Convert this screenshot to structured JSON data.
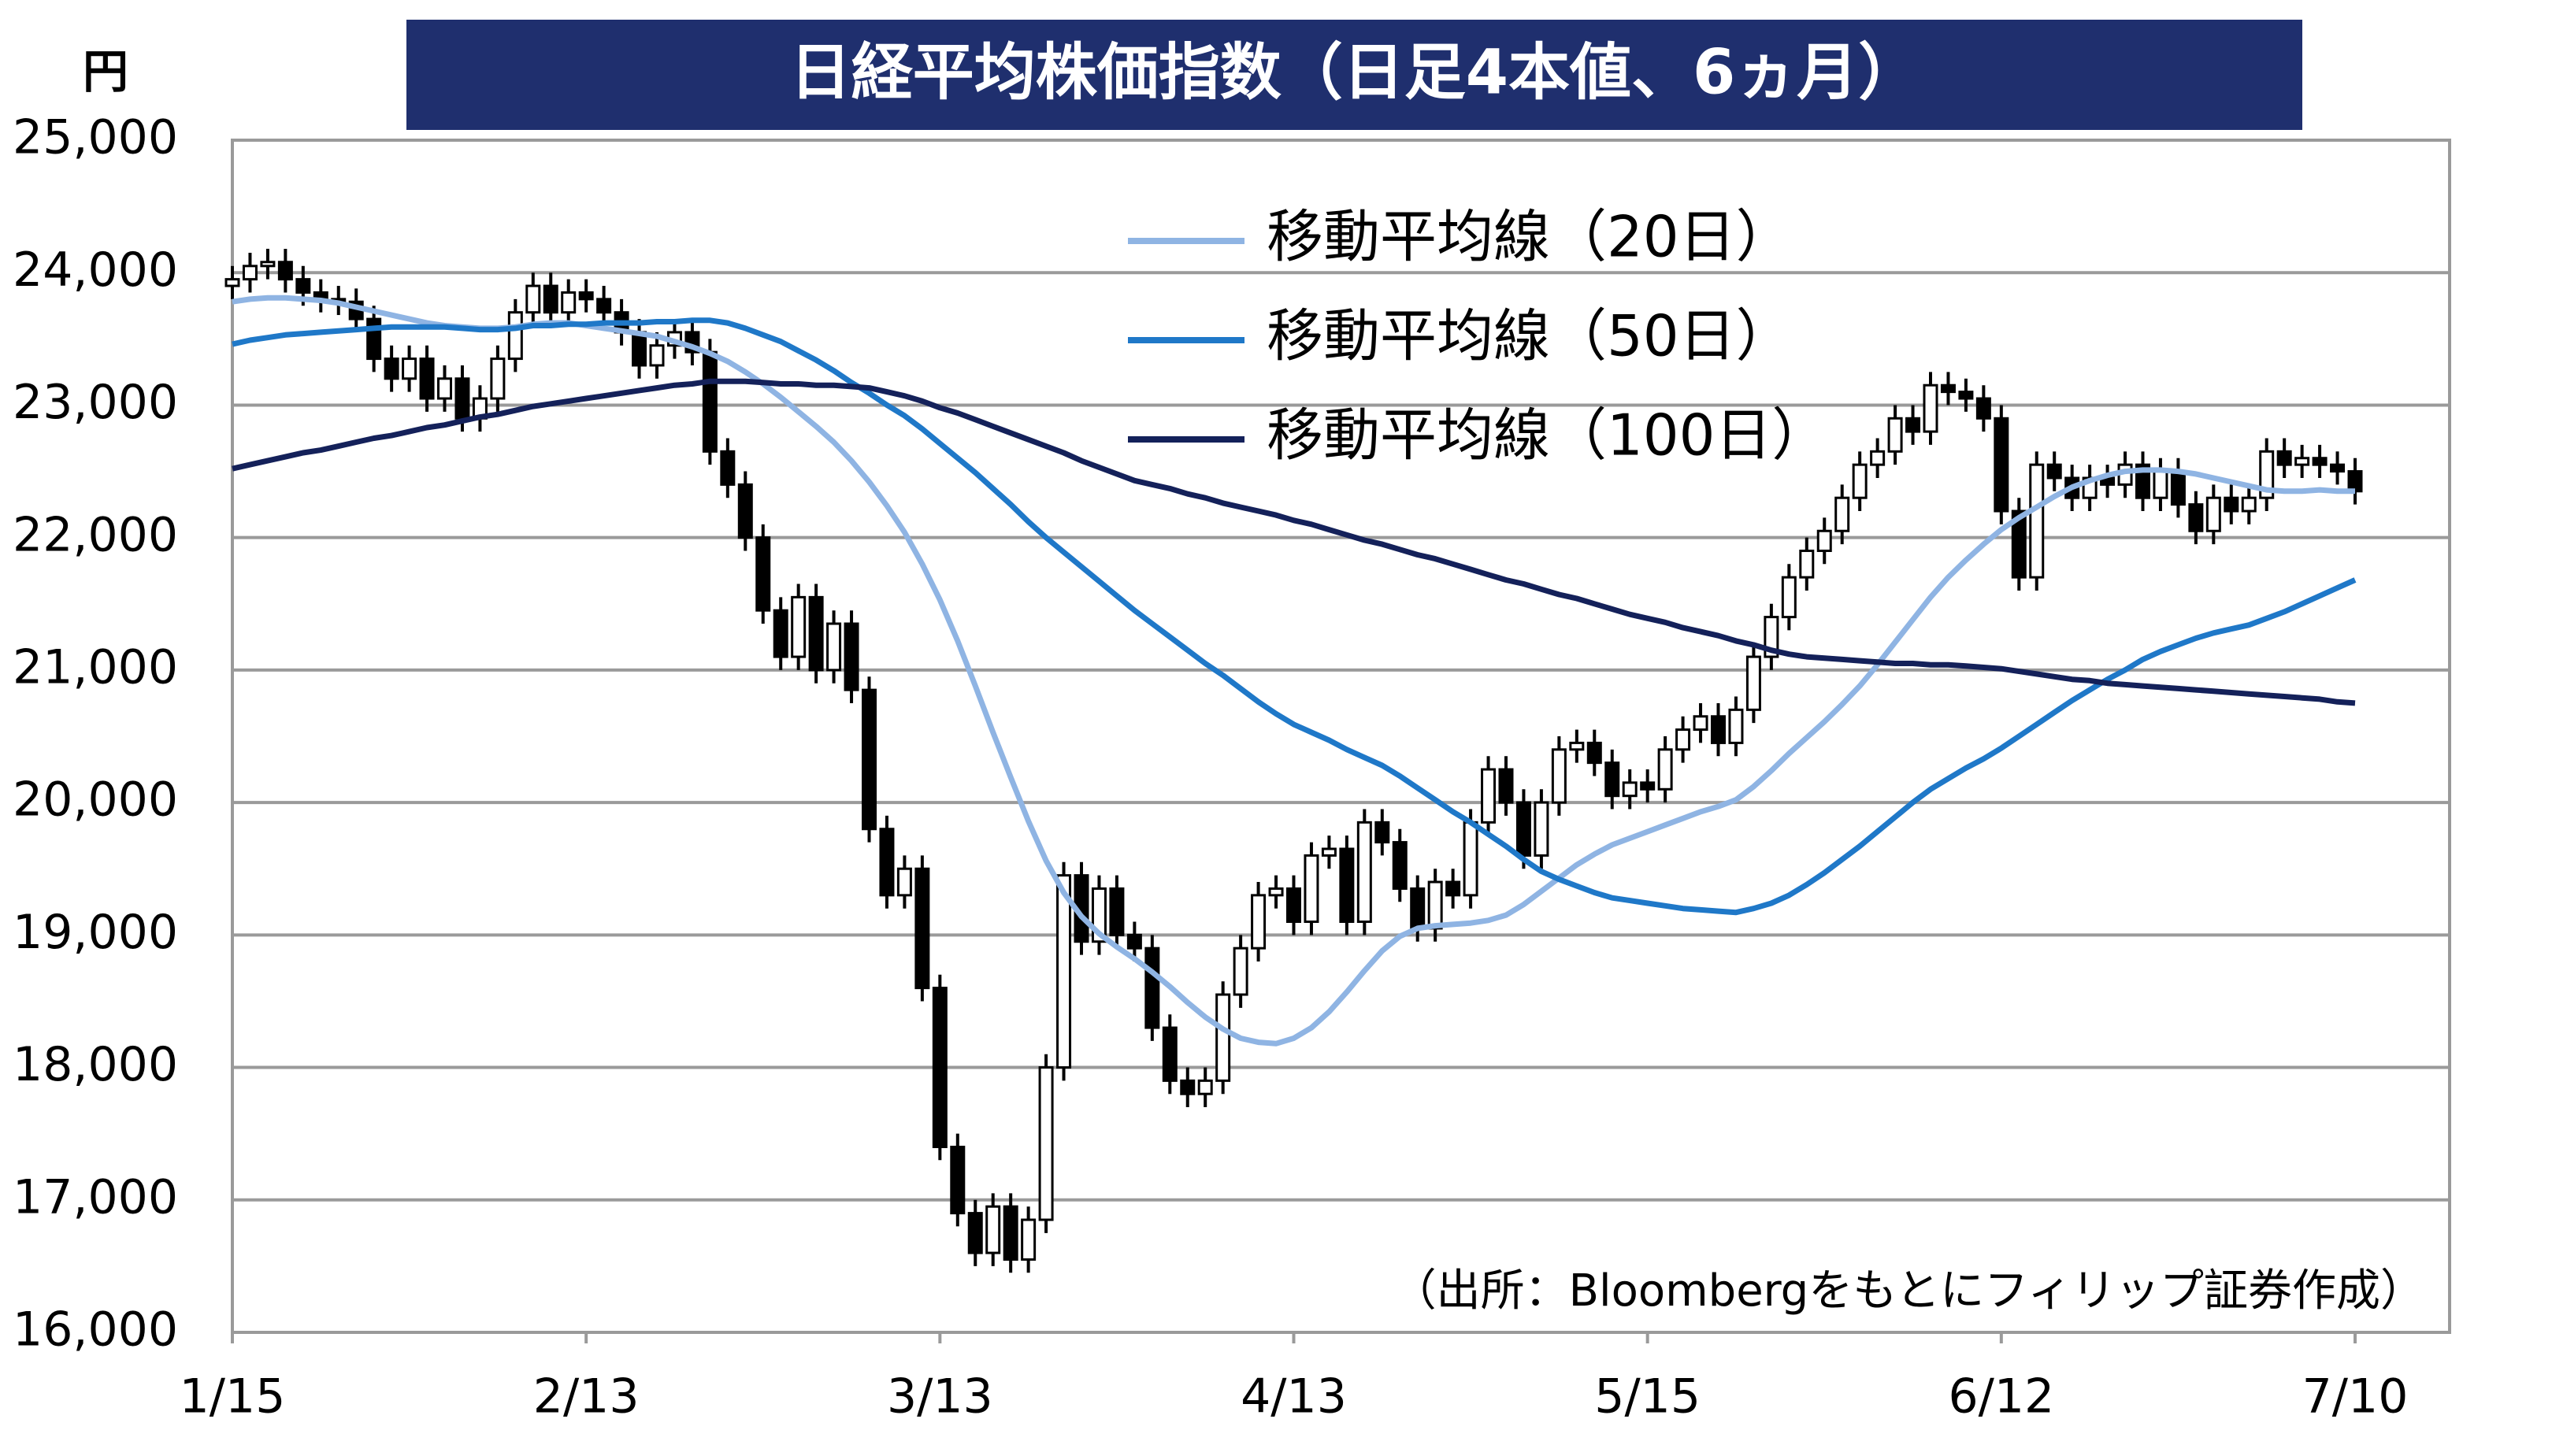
{
  "chart_data": {
    "type": "candlestick",
    "title": "日経平均株価指数（日足4本値、6ヵ月）",
    "y_label": "円",
    "source": "（出所：Bloombergをもとにフィリップ証券作成）",
    "ylim": [
      16000,
      25000
    ],
    "yticks": [
      {
        "value": 16000,
        "label": "16,000"
      },
      {
        "value": 17000,
        "label": "17,000"
      },
      {
        "value": 18000,
        "label": "18,000"
      },
      {
        "value": 19000,
        "label": "19,000"
      },
      {
        "value": 20000,
        "label": "20,000"
      },
      {
        "value": 21000,
        "label": "21,000"
      },
      {
        "value": 22000,
        "label": "22,000"
      },
      {
        "value": 23000,
        "label": "23,000"
      },
      {
        "value": 24000,
        "label": "24,000"
      },
      {
        "value": 25000,
        "label": "25,000"
      }
    ],
    "grid": true,
    "legend": "upper center",
    "up_color": "#ffffff",
    "down_color": "#000000",
    "categories": [
      "1/15",
      null,
      null,
      null,
      null,
      null,
      null,
      null,
      null,
      null,
      null,
      null,
      null,
      null,
      null,
      null,
      null,
      null,
      null,
      null,
      "2/13",
      null,
      null,
      null,
      null,
      null,
      null,
      null,
      null,
      null,
      null,
      null,
      null,
      null,
      null,
      null,
      null,
      null,
      null,
      null,
      "3/13",
      null,
      null,
      null,
      null,
      null,
      null,
      null,
      null,
      null,
      null,
      null,
      null,
      null,
      null,
      null,
      null,
      null,
      null,
      null,
      "4/13",
      null,
      null,
      null,
      null,
      null,
      null,
      null,
      null,
      null,
      null,
      null,
      null,
      null,
      null,
      null,
      null,
      null,
      null,
      null,
      "5/15",
      null,
      null,
      null,
      null,
      null,
      null,
      null,
      null,
      null,
      null,
      null,
      null,
      null,
      null,
      null,
      null,
      null,
      null,
      null,
      "6/12",
      null,
      null,
      null,
      null,
      null,
      null,
      null,
      null,
      null,
      null,
      null,
      null,
      null,
      null,
      null,
      null,
      null,
      null,
      null,
      "7/10"
    ],
    "open": [
      23900,
      23950,
      24050,
      24080,
      23950,
      23850,
      23800,
      23780,
      23650,
      23350,
      23200,
      23350,
      23050,
      23200,
      22900,
      23050,
      23350,
      23700,
      23900,
      23700,
      23850,
      23800,
      23700,
      23550,
      23300,
      23450,
      23550,
      23400,
      22650,
      22400,
      22000,
      21450,
      21100,
      21550,
      21000,
      21350,
      20850,
      19800,
      19300,
      19500,
      18600,
      17400,
      16900,
      16600,
      16950,
      16550,
      16850,
      18000,
      19450,
      18950,
      19350,
      19000,
      18900,
      18300,
      17900,
      17800,
      17900,
      18550,
      18900,
      19300,
      19350,
      19100,
      19600,
      19650,
      19100,
      19850,
      19700,
      19350,
      19050,
      19400,
      19300,
      19850,
      20250,
      20000,
      19600,
      20000,
      20400,
      20450,
      20300,
      20050,
      20150,
      20100,
      20400,
      20550,
      20650,
      20450,
      20700,
      21100,
      21400,
      21700,
      21900,
      22050,
      22300,
      22550,
      22650,
      22900,
      22800,
      23150,
      23100,
      23050,
      22900,
      22200,
      21700,
      22550,
      22450,
      22300,
      22450,
      22400,
      22550,
      22300,
      22500,
      22250,
      22050,
      22300,
      22200,
      22300,
      22650,
      22550,
      22600,
      22550,
      22500
    ],
    "high": [
      24050,
      24150,
      24180,
      24180,
      24050,
      23950,
      23900,
      23880,
      23750,
      23450,
      23450,
      23450,
      23300,
      23300,
      23150,
      23450,
      23800,
      24000,
      24000,
      23950,
      23950,
      23900,
      23800,
      23650,
      23550,
      23650,
      23650,
      23500,
      22750,
      22500,
      22100,
      21550,
      21650,
      21650,
      21450,
      21450,
      20950,
      19900,
      19600,
      19600,
      18700,
      17500,
      17000,
      17050,
      17050,
      16950,
      18100,
      19550,
      19550,
      19450,
      19450,
      19100,
      19000,
      18400,
      18000,
      18000,
      18650,
      19000,
      19400,
      19450,
      19450,
      19700,
      19750,
      19750,
      19950,
      19950,
      19800,
      19450,
      19500,
      19500,
      19950,
      20350,
      20350,
      20100,
      20100,
      20500,
      20550,
      20550,
      20400,
      20250,
      20250,
      20500,
      20650,
      20750,
      20750,
      20800,
      21200,
      21500,
      21800,
      22000,
      22150,
      22400,
      22650,
      22750,
      23000,
      23000,
      23250,
      23250,
      23200,
      23150,
      23000,
      22300,
      22650,
      22650,
      22550,
      22550,
      22550,
      22650,
      22650,
      22600,
      22600,
      22350,
      22400,
      22400,
      22400,
      22750,
      22750,
      22700,
      22700,
      22650,
      22600
    ],
    "low": [
      23800,
      23850,
      23950,
      23850,
      23750,
      23700,
      23680,
      23550,
      23250,
      23100,
      23100,
      22950,
      22950,
      22800,
      22800,
      22950,
      23250,
      23600,
      23600,
      23600,
      23700,
      23600,
      23450,
      23200,
      23200,
      23350,
      23300,
      22550,
      22300,
      21900,
      21350,
      21000,
      21000,
      20900,
      20900,
      20750,
      19700,
      19200,
      19200,
      18500,
      17300,
      16800,
      16500,
      16500,
      16450,
      16450,
      16750,
      17900,
      18850,
      18850,
      18900,
      18800,
      18200,
      17800,
      17700,
      17700,
      17800,
      18450,
      18800,
      19200,
      19000,
      19000,
      19500,
      19000,
      19000,
      19600,
      19250,
      18950,
      18950,
      19200,
      19200,
      19750,
      19900,
      19500,
      19500,
      19900,
      20300,
      20200,
      19950,
      19950,
      20000,
      20000,
      20300,
      20450,
      20350,
      20350,
      20600,
      21000,
      21300,
      21600,
      21800,
      21950,
      22200,
      22450,
      22550,
      22700,
      22700,
      23000,
      22950,
      22800,
      22100,
      21600,
      21600,
      22350,
      22200,
      22200,
      22300,
      22300,
      22200,
      22200,
      22150,
      21950,
      21950,
      22100,
      22100,
      22200,
      22450,
      22450,
      22450,
      22400,
      22250
    ],
    "close": [
      23950,
      24050,
      24080,
      23950,
      23850,
      23800,
      23780,
      23650,
      23350,
      23200,
      23350,
      23050,
      23200,
      22900,
      23050,
      23350,
      23700,
      23900,
      23700,
      23850,
      23800,
      23700,
      23550,
      23300,
      23450,
      23550,
      23400,
      22650,
      22400,
      22000,
      21450,
      21100,
      21550,
      21000,
      21350,
      20850,
      19800,
      19300,
      19500,
      18600,
      17400,
      16900,
      16600,
      16950,
      16550,
      16850,
      18000,
      19450,
      18950,
      19350,
      19000,
      18900,
      18300,
      17900,
      17800,
      17900,
      18550,
      18900,
      19300,
      19350,
      19100,
      19600,
      19650,
      19100,
      19850,
      19700,
      19350,
      19050,
      19400,
      19300,
      19850,
      20250,
      20000,
      19600,
      20000,
      20400,
      20450,
      20300,
      20050,
      20150,
      20100,
      20400,
      20550,
      20650,
      20450,
      20700,
      21100,
      21400,
      21700,
      21900,
      22050,
      22300,
      22550,
      22650,
      22900,
      22800,
      23150,
      23100,
      23050,
      22900,
      22200,
      21700,
      22550,
      22450,
      22300,
      22450,
      22400,
      22550,
      22300,
      22500,
      22250,
      22050,
      22300,
      22200,
      22300,
      22650,
      22550,
      22600,
      22550,
      22500,
      22350
    ],
    "series": [
      {
        "name": "移動平均線（20日）",
        "color": "#8fb4e3",
        "values": [
          23780,
          23800,
          23810,
          23810,
          23800,
          23790,
          23770,
          23740,
          23710,
          23680,
          23650,
          23620,
          23600,
          23590,
          23580,
          23580,
          23590,
          23610,
          23620,
          23620,
          23600,
          23580,
          23560,
          23540,
          23520,
          23480,
          23440,
          23390,
          23330,
          23250,
          23160,
          23060,
          22950,
          22840,
          22720,
          22580,
          22420,
          22240,
          22040,
          21800,
          21530,
          21220,
          20880,
          20530,
          20190,
          19860,
          19560,
          19320,
          19140,
          19010,
          18910,
          18820,
          18720,
          18610,
          18490,
          18380,
          18290,
          18220,
          18190,
          18180,
          18220,
          18300,
          18420,
          18570,
          18730,
          18880,
          18990,
          19050,
          19070,
          19080,
          19090,
          19110,
          19150,
          19230,
          19330,
          19430,
          19530,
          19610,
          19680,
          19730,
          19780,
          19830,
          19880,
          19930,
          19970,
          20020,
          20120,
          20240,
          20370,
          20490,
          20610,
          20740,
          20880,
          21040,
          21210,
          21380,
          21550,
          21700,
          21830,
          21950,
          22060,
          22150,
          22230,
          22310,
          22380,
          22430,
          22470,
          22500,
          22510,
          22510,
          22500,
          22480,
          22450,
          22420,
          22390,
          22360,
          22350,
          22350,
          22360,
          22350,
          22350
        ]
      },
      {
        "name": "移動平均線（50日）",
        "color": "#1f78c8",
        "values": [
          23460,
          23490,
          23510,
          23530,
          23540,
          23550,
          23560,
          23570,
          23580,
          23590,
          23590,
          23590,
          23590,
          23580,
          23570,
          23570,
          23580,
          23600,
          23600,
          23610,
          23610,
          23620,
          23620,
          23620,
          23630,
          23630,
          23640,
          23640,
          23620,
          23580,
          23530,
          23480,
          23410,
          23340,
          23260,
          23170,
          23090,
          23000,
          22920,
          22820,
          22710,
          22600,
          22490,
          22370,
          22250,
          22120,
          22000,
          21890,
          21780,
          21670,
          21560,
          21450,
          21350,
          21250,
          21150,
          21050,
          20960,
          20860,
          20760,
          20670,
          20590,
          20530,
          20470,
          20400,
          20340,
          20280,
          20200,
          20110,
          20020,
          19930,
          19850,
          19760,
          19670,
          19570,
          19480,
          19420,
          19370,
          19320,
          19280,
          19260,
          19240,
          19220,
          19200,
          19190,
          19180,
          19170,
          19200,
          19240,
          19300,
          19380,
          19470,
          19570,
          19670,
          19780,
          19890,
          20000,
          20100,
          20180,
          20260,
          20330,
          20410,
          20500,
          20590,
          20680,
          20770,
          20850,
          20930,
          21000,
          21080,
          21140,
          21190,
          21240,
          21280,
          21310,
          21340,
          21390,
          21440,
          21500,
          21560,
          21620,
          21680
        ]
      },
      {
        "name": "移動平均線（100日）",
        "color": "#14215a",
        "values": [
          22520,
          22550,
          22580,
          22610,
          22640,
          22660,
          22690,
          22720,
          22750,
          22770,
          22800,
          22830,
          22850,
          22880,
          22910,
          22930,
          22960,
          22990,
          23010,
          23030,
          23050,
          23070,
          23090,
          23110,
          23130,
          23150,
          23160,
          23180,
          23180,
          23180,
          23170,
          23160,
          23160,
          23150,
          23150,
          23140,
          23130,
          23100,
          23070,
          23030,
          22980,
          22940,
          22890,
          22840,
          22790,
          22740,
          22690,
          22640,
          22580,
          22530,
          22480,
          22430,
          22400,
          22370,
          22330,
          22300,
          22260,
          22230,
          22200,
          22170,
          22130,
          22100,
          22060,
          22020,
          21980,
          21950,
          21910,
          21870,
          21840,
          21800,
          21760,
          21720,
          21680,
          21650,
          21610,
          21570,
          21540,
          21500,
          21460,
          21420,
          21390,
          21360,
          21320,
          21290,
          21260,
          21220,
          21190,
          21150,
          21120,
          21100,
          21090,
          21080,
          21070,
          21060,
          21050,
          21050,
          21040,
          21040,
          21030,
          21020,
          21010,
          20990,
          20970,
          20950,
          20930,
          20920,
          20900,
          20890,
          20880,
          20870,
          20860,
          20850,
          20840,
          20830,
          20820,
          20810,
          20800,
          20790,
          20780,
          20760,
          20750
        ]
      }
    ]
  }
}
